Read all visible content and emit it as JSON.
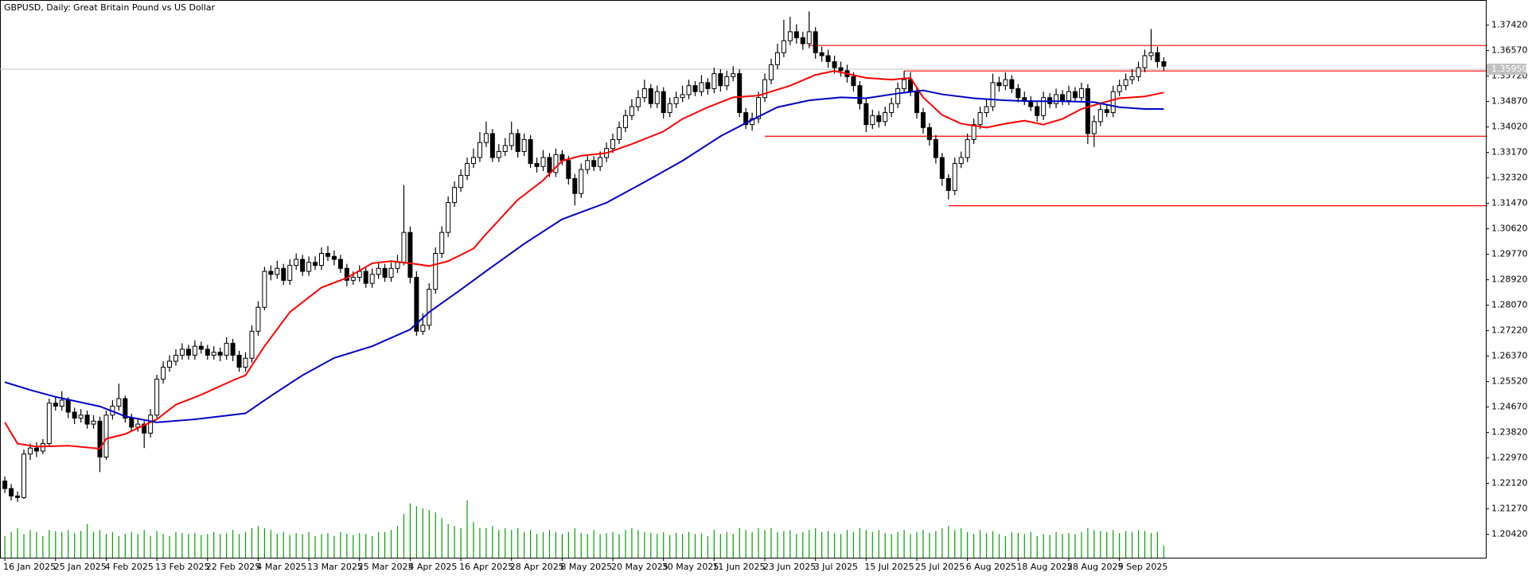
{
  "chart_data": {
    "type": "candlestick",
    "title": "GBPUSD, Daily:",
    "subtitle": "Great Britain Pound vs US Dollar",
    "up_color": "#ffffff",
    "down_color": "#000000",
    "outline_color": "#000000",
    "xlim": [
      -0.77,
      233.85
    ],
    "ylim": [
      1.1964,
      1.381
    ],
    "yticks": [
      {
        "value": 1.3742,
        "label": "1.37420"
      },
      {
        "value": 1.3657,
        "label": "1.36570"
      },
      {
        "value": 1.3572,
        "label": "1.35720"
      },
      {
        "value": 1.3487,
        "label": "1.34870"
      },
      {
        "value": 1.3402,
        "label": "1.34020"
      },
      {
        "value": 1.3317,
        "label": "1.33170"
      },
      {
        "value": 1.3232,
        "label": "1.32320"
      },
      {
        "value": 1.3147,
        "label": "1.31470"
      },
      {
        "value": 1.3062,
        "label": "1.30620"
      },
      {
        "value": 1.2977,
        "label": "1.29770"
      },
      {
        "value": 1.2892,
        "label": "1.28920"
      },
      {
        "value": 1.2807,
        "label": "1.28070"
      },
      {
        "value": 1.2722,
        "label": "1.27220"
      },
      {
        "value": 1.2637,
        "label": "1.26370"
      },
      {
        "value": 1.2552,
        "label": "1.25520"
      },
      {
        "value": 1.2467,
        "label": "1.24670"
      },
      {
        "value": 1.2382,
        "label": "1.23820"
      },
      {
        "value": 1.2297,
        "label": "1.22970"
      },
      {
        "value": 1.2212,
        "label": "1.22120"
      },
      {
        "value": 1.2127,
        "label": "1.21270"
      },
      {
        "value": 1.2042,
        "label": "1.20420"
      }
    ],
    "xticks": [
      {
        "value": 0,
        "label": "16 Jan 2025"
      },
      {
        "value": 8,
        "label": "25 Jan 2025"
      },
      {
        "value": 16,
        "label": "4 Feb 2025"
      },
      {
        "value": 24,
        "label": "13 Feb 2025"
      },
      {
        "value": 32,
        "label": "22 Feb 2025"
      },
      {
        "value": 40,
        "label": "4 Mar 2025"
      },
      {
        "value": 48,
        "label": "13 Mar 2025"
      },
      {
        "value": 56,
        "label": "25 Mar 2025"
      },
      {
        "value": 64,
        "label": "4 Apr 2025"
      },
      {
        "value": 72,
        "label": "16 Apr 2025"
      },
      {
        "value": 80,
        "label": "28 Apr 2025"
      },
      {
        "value": 88,
        "label": "8 May 2025"
      },
      {
        "value": 96,
        "label": "20 May 2025"
      },
      {
        "value": 104,
        "label": "30 May 2025"
      },
      {
        "value": 112,
        "label": "11 Jun 2025"
      },
      {
        "value": 120,
        "label": "23 Jun 2025"
      },
      {
        "value": 128,
        "label": "3 Jul 2025"
      },
      {
        "value": 136,
        "label": "15 Jul 2025"
      },
      {
        "value": 144,
        "label": "25 Jul 2025"
      },
      {
        "value": 152,
        "label": "6 Aug 2025"
      },
      {
        "value": 160,
        "label": "18 Aug 2025"
      },
      {
        "value": 168,
        "label": "28 Aug 2025"
      },
      {
        "value": 176,
        "label": "9 Sep 2025"
      }
    ],
    "open": [
      1.222,
      1.2195,
      1.217,
      1.2165,
      1.231,
      1.233,
      1.232,
      1.2345,
      1.248,
      1.247,
      1.249,
      1.245,
      1.243,
      1.244,
      1.241,
      1.242,
      1.23,
      1.244,
      1.247,
      1.2495,
      1.243,
      1.24,
      1.241,
      1.238,
      1.244,
      1.256,
      1.26,
      1.262,
      1.264,
      1.266,
      1.264,
      1.267,
      1.266,
      1.264,
      1.265,
      1.264,
      1.268,
      1.264,
      1.26,
      1.263,
      1.272,
      1.28,
      1.292,
      1.291,
      1.293,
      1.289,
      1.294,
      1.296,
      1.292,
      1.295,
      1.294,
      1.298,
      1.297,
      1.296,
      1.293,
      1.289,
      1.29,
      1.292,
      1.288,
      1.291,
      1.293,
      1.29,
      1.293,
      1.295,
      1.305,
      1.29,
      1.272,
      1.274,
      1.286,
      1.298,
      1.305,
      1.315,
      1.32,
      1.324,
      1.328,
      1.33,
      1.335,
      1.338,
      1.33,
      1.332,
      1.334,
      1.338,
      1.332,
      1.336,
      1.328,
      1.327,
      1.33,
      1.325,
      1.331,
      1.329,
      1.323,
      1.318,
      1.326,
      1.329,
      1.327,
      1.33,
      1.333,
      1.336,
      1.34,
      1.344,
      1.347,
      1.35,
      1.353,
      1.348,
      1.352,
      1.345,
      1.348,
      1.35,
      1.351,
      1.354,
      1.352,
      1.355,
      1.353,
      1.358,
      1.354,
      1.357,
      1.358,
      1.345,
      1.341,
      1.343,
      1.35,
      1.356,
      1.361,
      1.365,
      1.369,
      1.372,
      1.37,
      1.368,
      1.372,
      1.365,
      1.364,
      1.362,
      1.36,
      1.359,
      1.357,
      1.354,
      1.348,
      1.341,
      1.344,
      1.342,
      1.345,
      1.348,
      1.353,
      1.356,
      1.352,
      1.345,
      1.34,
      1.336,
      1.33,
      1.323,
      1.319,
      1.328,
      1.33,
      1.336,
      1.341,
      1.345,
      1.347,
      1.355,
      1.354,
      1.356,
      1.353,
      1.35,
      1.349,
      1.347,
      1.344,
      1.35,
      1.348,
      1.351,
      1.349,
      1.352,
      1.35,
      1.353,
      1.338,
      1.342,
      1.346,
      1.345,
      1.352,
      1.354,
      1.356,
      1.357,
      1.36,
      1.364,
      1.365,
      1.362
    ],
    "high": [
      1.2235,
      1.221,
      1.2185,
      1.2325,
      1.2345,
      1.235,
      1.236,
      1.2495,
      1.25,
      1.252,
      1.25,
      1.2465,
      1.246,
      1.2455,
      1.244,
      1.2435,
      1.2455,
      1.249,
      1.2545,
      1.2505,
      1.2445,
      1.2425,
      1.242,
      1.246,
      1.2575,
      1.262,
      1.264,
      1.266,
      1.268,
      1.2675,
      1.269,
      1.2685,
      1.2675,
      1.267,
      1.2665,
      1.27,
      1.2695,
      1.2655,
      1.265,
      1.274,
      1.282,
      1.2935,
      1.294,
      1.2955,
      1.2945,
      1.296,
      1.298,
      1.2975,
      1.297,
      1.297,
      1.3,
      1.3005,
      1.299,
      1.2975,
      1.2945,
      1.292,
      1.294,
      1.2935,
      1.293,
      1.295,
      1.2945,
      1.295,
      1.2975,
      1.3208,
      1.307,
      1.292,
      1.278,
      1.288,
      1.3,
      1.307,
      1.317,
      1.322,
      1.326,
      1.33,
      1.333,
      1.3385,
      1.342,
      1.3395,
      1.3345,
      1.3365,
      1.342,
      1.3395,
      1.338,
      1.3375,
      1.33,
      1.3325,
      1.3315,
      1.333,
      1.3325,
      1.3305,
      1.3245,
      1.328,
      1.331,
      1.3305,
      1.332,
      1.335,
      1.338,
      1.342,
      1.346,
      1.3495,
      1.3525,
      1.356,
      1.3545,
      1.354,
      1.3535,
      1.35,
      1.352,
      1.354,
      1.356,
      1.3555,
      1.3575,
      1.3565,
      1.36,
      1.3595,
      1.359,
      1.3605,
      1.3595,
      1.3465,
      1.345,
      1.352,
      1.358,
      1.363,
      1.368,
      1.376,
      1.377,
      1.3745,
      1.372,
      1.3788,
      1.3735,
      1.367,
      1.366,
      1.364,
      1.362,
      1.361,
      1.3585,
      1.3555,
      1.3495,
      1.346,
      1.3455,
      1.347,
      1.35,
      1.355,
      1.359,
      1.3585,
      1.3535,
      1.3465,
      1.3415,
      1.3375,
      1.3315,
      1.3245,
      1.33,
      1.332,
      1.338,
      1.343,
      1.347,
      1.3495,
      1.358,
      1.357,
      1.3585,
      1.3575,
      1.3545,
      1.352,
      1.3505,
      1.3485,
      1.352,
      1.3515,
      1.353,
      1.3525,
      1.354,
      1.3535,
      1.355,
      1.3545,
      1.344,
      1.348,
      1.3475,
      1.354,
      1.356,
      1.358,
      1.3595,
      1.362,
      1.366,
      1.3729,
      1.367,
      1.3635
    ],
    "low": [
      1.218,
      1.2155,
      1.215,
      1.216,
      1.229,
      1.23,
      1.231,
      1.2335,
      1.2455,
      1.2455,
      1.243,
      1.241,
      1.2415,
      1.2395,
      1.2395,
      1.225,
      1.229,
      1.2425,
      1.2455,
      1.2415,
      1.2385,
      1.2385,
      1.233,
      1.2365,
      1.243,
      1.2545,
      1.2585,
      1.2605,
      1.2625,
      1.2625,
      1.2625,
      1.2645,
      1.2625,
      1.2625,
      1.262,
      1.2625,
      1.262,
      1.2585,
      1.2585,
      1.2615,
      1.2705,
      1.279,
      1.289,
      1.2895,
      1.2875,
      1.2875,
      1.2925,
      1.2905,
      1.2905,
      1.2925,
      1.2925,
      1.2955,
      1.294,
      1.2915,
      1.287,
      1.2875,
      1.2885,
      1.2865,
      1.2865,
      1.2895,
      1.2885,
      1.2885,
      1.2915,
      1.294,
      1.288,
      1.2705,
      1.2708,
      1.2725,
      1.2845,
      1.2965,
      1.3035,
      1.3135,
      1.3185,
      1.3225,
      1.3265,
      1.3285,
      1.3335,
      1.3285,
      1.3285,
      1.3305,
      1.3325,
      1.33,
      1.3305,
      1.3265,
      1.325,
      1.3255,
      1.3235,
      1.3235,
      1.3275,
      1.321,
      1.314,
      1.3165,
      1.3245,
      1.3255,
      1.3255,
      1.3285,
      1.3315,
      1.3345,
      1.3385,
      1.3425,
      1.3455,
      1.3485,
      1.3465,
      1.3465,
      1.343,
      1.3435,
      1.3465,
      1.3485,
      1.3495,
      1.3505,
      1.3505,
      1.351,
      1.3515,
      1.352,
      1.3525,
      1.3555,
      1.3435,
      1.3395,
      1.339,
      1.3415,
      1.3485,
      1.3545,
      1.3595,
      1.3635,
      1.3675,
      1.368,
      1.366,
      1.3665,
      1.363,
      1.362,
      1.36,
      1.358,
      1.357,
      1.355,
      1.352,
      1.346,
      1.3385,
      1.3395,
      1.34,
      1.3405,
      1.3435,
      1.3465,
      1.3515,
      1.3505,
      1.343,
      1.338,
      1.334,
      1.328,
      1.3205,
      1.316,
      1.3175,
      1.3265,
      1.3285,
      1.3345,
      1.3395,
      1.3435,
      1.3455,
      1.352,
      1.3525,
      1.3515,
      1.3485,
      1.3475,
      1.3455,
      1.342,
      1.3425,
      1.3465,
      1.3465,
      1.3475,
      1.3475,
      1.3485,
      1.3485,
      1.3345,
      1.3335,
      1.3405,
      1.3435,
      1.3435,
      1.3505,
      1.3525,
      1.3545,
      1.3555,
      1.3585,
      1.3625,
      1.36,
      1.359
    ],
    "close": [
      1.2195,
      1.217,
      1.2165,
      1.231,
      1.233,
      1.232,
      1.2345,
      1.248,
      1.247,
      1.249,
      1.245,
      1.243,
      1.244,
      1.241,
      1.242,
      1.23,
      1.244,
      1.247,
      1.2495,
      1.243,
      1.24,
      1.241,
      1.238,
      1.244,
      1.256,
      1.26,
      1.262,
      1.264,
      1.266,
      1.264,
      1.267,
      1.266,
      1.264,
      1.265,
      1.264,
      1.268,
      1.264,
      1.26,
      1.263,
      1.272,
      1.28,
      1.292,
      1.291,
      1.293,
      1.289,
      1.294,
      1.296,
      1.292,
      1.295,
      1.294,
      1.298,
      1.297,
      1.296,
      1.293,
      1.289,
      1.29,
      1.292,
      1.288,
      1.291,
      1.293,
      1.29,
      1.293,
      1.295,
      1.305,
      1.29,
      1.272,
      1.274,
      1.286,
      1.298,
      1.305,
      1.315,
      1.32,
      1.324,
      1.328,
      1.33,
      1.335,
      1.338,
      1.33,
      1.332,
      1.334,
      1.338,
      1.332,
      1.336,
      1.328,
      1.327,
      1.33,
      1.325,
      1.331,
      1.329,
      1.323,
      1.318,
      1.326,
      1.329,
      1.327,
      1.33,
      1.333,
      1.336,
      1.34,
      1.344,
      1.347,
      1.35,
      1.353,
      1.348,
      1.352,
      1.345,
      1.348,
      1.35,
      1.351,
      1.354,
      1.352,
      1.355,
      1.353,
      1.358,
      1.354,
      1.357,
      1.358,
      1.345,
      1.341,
      1.343,
      1.35,
      1.356,
      1.361,
      1.365,
      1.369,
      1.372,
      1.37,
      1.368,
      1.372,
      1.365,
      1.364,
      1.362,
      1.36,
      1.359,
      1.357,
      1.354,
      1.348,
      1.341,
      1.344,
      1.342,
      1.345,
      1.348,
      1.353,
      1.356,
      1.352,
      1.345,
      1.34,
      1.336,
      1.33,
      1.323,
      1.319,
      1.328,
      1.33,
      1.336,
      1.341,
      1.345,
      1.347,
      1.355,
      1.354,
      1.356,
      1.353,
      1.35,
      1.349,
      1.347,
      1.344,
      1.35,
      1.348,
      1.351,
      1.349,
      1.352,
      1.35,
      1.353,
      1.338,
      1.342,
      1.346,
      1.345,
      1.352,
      1.354,
      1.356,
      1.357,
      1.36,
      1.364,
      1.365,
      1.362,
      1.3605
    ],
    "volume": {
      "color": "#00a000",
      "values": [
        22,
        26,
        30,
        24,
        28,
        26,
        22,
        28,
        27,
        26,
        28,
        25,
        27,
        34,
        26,
        28,
        24,
        26,
        22,
        24,
        26,
        24,
        28,
        22,
        27,
        24,
        22,
        26,
        25,
        24,
        25,
        23,
        24,
        26,
        24,
        25,
        28,
        24,
        26,
        30,
        32,
        30,
        28,
        24,
        26,
        23,
        25,
        24,
        26,
        22,
        24,
        25,
        22,
        26,
        24,
        23,
        25,
        24,
        22,
        26,
        26,
        28,
        32,
        44,
        55,
        52,
        50,
        48,
        46,
        40,
        34,
        32,
        30,
        58,
        36,
        30,
        30,
        32,
        28,
        30,
        28,
        30,
        26,
        28,
        24,
        26,
        28,
        26,
        24,
        26,
        30,
        25,
        24,
        28,
        24,
        25,
        26,
        24,
        28,
        30,
        28,
        26,
        25,
        24,
        26,
        23,
        25,
        24,
        26,
        24,
        25,
        22,
        28,
        24,
        26,
        24,
        30,
        28,
        26,
        30,
        28,
        30,
        26,
        27,
        28,
        24,
        26,
        28,
        30,
        26,
        27,
        25,
        24,
        28,
        26,
        30,
        28,
        26,
        28,
        25,
        24,
        26,
        28,
        24,
        26,
        28,
        25,
        27,
        30,
        32,
        28,
        30,
        26,
        24,
        28,
        25,
        27,
        24,
        22,
        26,
        25,
        24,
        26,
        22,
        24,
        23,
        26,
        24,
        25,
        24,
        26,
        30,
        28,
        27,
        26,
        28,
        25,
        27,
        26,
        28,
        27,
        25,
        26,
        12
      ]
    },
    "moving_averages": [
      {
        "color": "#ff0000",
        "x": [
          0,
          2,
          5,
          10,
          15,
          16,
          19,
          24,
          27,
          31,
          36,
          38,
          41,
          45,
          50,
          54,
          58,
          61,
          64,
          67,
          70,
          74,
          76,
          81,
          85,
          88,
          91,
          95,
          99,
          104,
          107,
          111,
          115,
          119,
          124,
          128,
          131,
          136,
          140,
          143,
          145,
          148,
          151,
          155,
          158,
          161,
          164,
          167,
          170,
          173,
          176,
          180,
          183
        ],
        "values": [
          1.2416,
          1.2345,
          1.2335,
          1.2338,
          1.2328,
          1.2361,
          1.2377,
          1.2426,
          1.2475,
          1.2508,
          1.2556,
          1.2573,
          1.267,
          1.2784,
          1.2866,
          1.2898,
          1.2947,
          1.2954,
          1.2947,
          1.2938,
          1.2954,
          1.2996,
          1.3045,
          1.3159,
          1.3224,
          1.3289,
          1.3306,
          1.3315,
          1.3345,
          1.3387,
          1.3429,
          1.3468,
          1.3501,
          1.3507,
          1.354,
          1.3576,
          1.3589,
          1.3566,
          1.356,
          1.3566,
          1.3501,
          1.3442,
          1.3413,
          1.34,
          1.3413,
          1.3423,
          1.341,
          1.3429,
          1.3462,
          1.3481,
          1.3498,
          1.3504,
          1.3517
        ]
      },
      {
        "color": "#0000c8",
        "x": [
          0,
          4,
          8,
          15,
          19,
          24,
          30,
          38,
          42,
          47,
          52,
          58,
          64,
          67,
          72,
          76,
          82,
          88,
          95,
          101,
          107,
          113,
          118,
          122,
          127,
          132,
          136,
          141,
          145,
          148,
          153,
          158,
          162,
          167,
          172,
          176,
          180,
          183
        ],
        "values": [
          1.255,
          1.2524,
          1.2501,
          1.2469,
          1.2436,
          1.2416,
          1.2426,
          1.2446,
          1.2504,
          1.2573,
          1.2631,
          1.267,
          1.2726,
          1.2784,
          1.2859,
          1.2921,
          1.3012,
          1.3094,
          1.3149,
          1.3218,
          1.3289,
          1.3371,
          1.3426,
          1.3468,
          1.3491,
          1.3501,
          1.3498,
          1.3514,
          1.3524,
          1.3511,
          1.3498,
          1.3491,
          1.3488,
          1.3488,
          1.3485,
          1.3468,
          1.3462,
          1.3462
        ]
      }
    ],
    "levels": [
      {
        "value": 1.3674,
        "from": 127,
        "color": "#ff0000"
      },
      {
        "value": 1.3589,
        "from": 142,
        "color": "#ff0000"
      },
      {
        "value": 1.3371,
        "from": 120,
        "color": "#ff0000"
      },
      {
        "value": 1.3139,
        "from": 149,
        "color": "#ff0000"
      }
    ],
    "price_line": {
      "value": 1.3595,
      "label": "1.35950",
      "color": "#c0c0c0"
    }
  }
}
